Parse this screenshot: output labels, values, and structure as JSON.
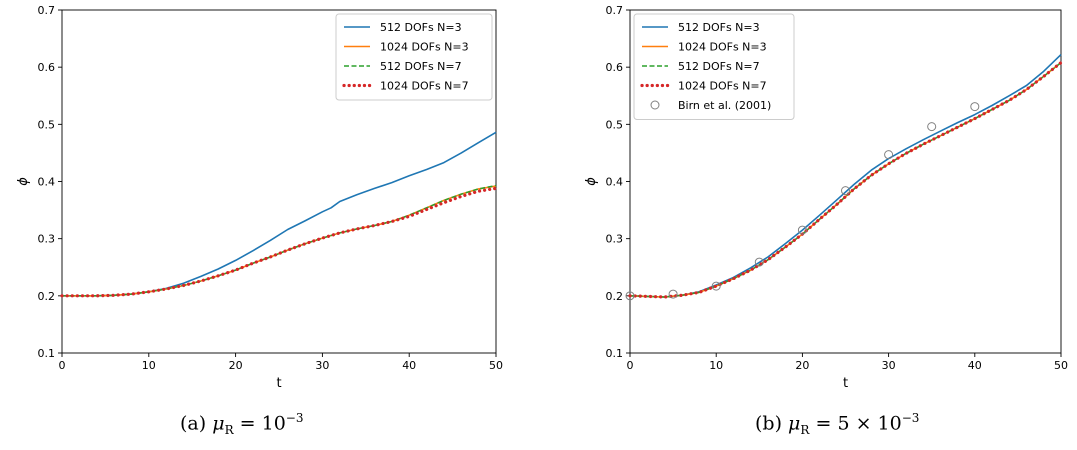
{
  "chart_data": [
    {
      "type": "line",
      "xlabel": "t",
      "ylabel": "ϕ",
      "xlim": [
        0,
        50
      ],
      "ylim": [
        0.1,
        0.7
      ],
      "xticks": [
        "0",
        "10",
        "20",
        "30",
        "40",
        "50"
      ],
      "yticks": [
        "0.1",
        "0.2",
        "0.3",
        "0.4",
        "0.5",
        "0.6",
        "0.7"
      ],
      "grid": false,
      "legend_position": "top-right",
      "caption": {
        "prefix": "(a) ",
        "mu": "μ",
        "sub": "R",
        "eq": " = ",
        "value": "10",
        "sup": "−3"
      },
      "series": [
        {
          "name": "512 DOFs N=3",
          "color": "#1f77b4",
          "style": "solid",
          "x": [
            0,
            2,
            4,
            6,
            8,
            10,
            12,
            14,
            16,
            18,
            20,
            22,
            24,
            26,
            28,
            30,
            31,
            32,
            34,
            36,
            38,
            40,
            42,
            44,
            46,
            48,
            50
          ],
          "y": [
            0.2,
            0.2,
            0.2,
            0.201,
            0.203,
            0.207,
            0.213,
            0.222,
            0.234,
            0.247,
            0.262,
            0.279,
            0.297,
            0.316,
            0.331,
            0.347,
            0.354,
            0.365,
            0.377,
            0.388,
            0.398,
            0.41,
            0.421,
            0.433,
            0.45,
            0.468,
            0.486
          ]
        },
        {
          "name": "1024 DOFs N=3",
          "color": "#ff7f0e",
          "style": "solid",
          "x": [
            0,
            2,
            4,
            6,
            8,
            10,
            12,
            14,
            16,
            18,
            20,
            22,
            24,
            26,
            28,
            30,
            32,
            34,
            36,
            38,
            40,
            42,
            44,
            46,
            48,
            50
          ],
          "y": [
            0.2,
            0.2,
            0.2,
            0.201,
            0.203,
            0.207,
            0.212,
            0.218,
            0.226,
            0.235,
            0.245,
            0.257,
            0.268,
            0.28,
            0.291,
            0.301,
            0.31,
            0.317,
            0.323,
            0.33,
            0.341,
            0.354,
            0.367,
            0.378,
            0.387,
            0.392
          ]
        },
        {
          "name": "512 DOFs N=7",
          "color": "#2ca02c",
          "style": "dashed",
          "x": [
            0,
            2,
            4,
            6,
            8,
            10,
            12,
            14,
            16,
            18,
            20,
            22,
            24,
            26,
            28,
            30,
            32,
            34,
            36,
            38,
            40,
            42,
            44,
            46,
            48,
            50
          ],
          "y": [
            0.2,
            0.2,
            0.2,
            0.201,
            0.203,
            0.207,
            0.212,
            0.218,
            0.226,
            0.235,
            0.245,
            0.257,
            0.268,
            0.28,
            0.291,
            0.301,
            0.31,
            0.317,
            0.323,
            0.33,
            0.341,
            0.354,
            0.367,
            0.378,
            0.387,
            0.393
          ]
        },
        {
          "name": "1024 DOFs N=7",
          "color": "#d62728",
          "style": "dotted",
          "x": [
            0,
            2,
            4,
            6,
            8,
            10,
            12,
            14,
            16,
            18,
            20,
            22,
            24,
            26,
            28,
            30,
            32,
            34,
            36,
            38,
            40,
            42,
            44,
            46,
            48,
            50
          ],
          "y": [
            0.2,
            0.2,
            0.2,
            0.201,
            0.203,
            0.207,
            0.212,
            0.218,
            0.226,
            0.235,
            0.245,
            0.257,
            0.268,
            0.28,
            0.291,
            0.301,
            0.31,
            0.317,
            0.323,
            0.33,
            0.339,
            0.351,
            0.363,
            0.374,
            0.383,
            0.388
          ]
        }
      ]
    },
    {
      "type": "line",
      "xlabel": "t",
      "ylabel": "ϕ",
      "xlim": [
        0,
        50
      ],
      "ylim": [
        0.1,
        0.7
      ],
      "xticks": [
        "0",
        "10",
        "20",
        "30",
        "40",
        "50"
      ],
      "yticks": [
        "0.1",
        "0.2",
        "0.3",
        "0.4",
        "0.5",
        "0.6",
        "0.7"
      ],
      "grid": false,
      "legend_position": "top-left",
      "caption": {
        "prefix": "(b) ",
        "mu": "μ",
        "sub": "R",
        "eq": " = ",
        "value": "5 × 10",
        "sup": "−3"
      },
      "series": [
        {
          "name": "512 DOFs N=3",
          "color": "#1f77b4",
          "style": "solid",
          "x": [
            0,
            2,
            4,
            6,
            8,
            10,
            12,
            14,
            16,
            18,
            20,
            22,
            24,
            26,
            28,
            30,
            32,
            34,
            36,
            38,
            40,
            42,
            44,
            46,
            48,
            50
          ],
          "y": [
            0.2,
            0.199,
            0.198,
            0.201,
            0.207,
            0.219,
            0.232,
            0.249,
            0.268,
            0.291,
            0.315,
            0.341,
            0.368,
            0.395,
            0.42,
            0.44,
            0.457,
            0.473,
            0.488,
            0.503,
            0.517,
            0.533,
            0.55,
            0.568,
            0.593,
            0.622
          ]
        },
        {
          "name": "1024 DOFs N=3",
          "color": "#ff7f0e",
          "style": "solid",
          "x": [
            0,
            2,
            4,
            6,
            8,
            10,
            12,
            14,
            16,
            18,
            20,
            22,
            24,
            26,
            28,
            30,
            32,
            34,
            36,
            38,
            40,
            42,
            44,
            46,
            48,
            50
          ],
          "y": [
            0.2,
            0.199,
            0.198,
            0.201,
            0.206,
            0.217,
            0.23,
            0.245,
            0.263,
            0.285,
            0.308,
            0.334,
            0.36,
            0.387,
            0.411,
            0.431,
            0.449,
            0.465,
            0.48,
            0.495,
            0.51,
            0.526,
            0.542,
            0.561,
            0.584,
            0.608
          ]
        },
        {
          "name": "512 DOFs N=7",
          "color": "#2ca02c",
          "style": "dashed",
          "x": [
            0,
            2,
            4,
            6,
            8,
            10,
            12,
            14,
            16,
            18,
            20,
            22,
            24,
            26,
            28,
            30,
            32,
            34,
            36,
            38,
            40,
            42,
            44,
            46,
            48,
            50
          ],
          "y": [
            0.2,
            0.199,
            0.198,
            0.201,
            0.206,
            0.217,
            0.23,
            0.245,
            0.263,
            0.285,
            0.308,
            0.334,
            0.36,
            0.387,
            0.411,
            0.431,
            0.449,
            0.465,
            0.48,
            0.495,
            0.51,
            0.526,
            0.542,
            0.561,
            0.584,
            0.608
          ]
        },
        {
          "name": "1024 DOFs N=7",
          "color": "#d62728",
          "style": "dotted",
          "x": [
            0,
            2,
            4,
            6,
            8,
            10,
            12,
            14,
            16,
            18,
            20,
            22,
            24,
            26,
            28,
            30,
            32,
            34,
            36,
            38,
            40,
            42,
            44,
            46,
            48,
            50
          ],
          "y": [
            0.2,
            0.199,
            0.198,
            0.201,
            0.206,
            0.217,
            0.23,
            0.245,
            0.263,
            0.285,
            0.308,
            0.334,
            0.36,
            0.387,
            0.411,
            0.431,
            0.449,
            0.465,
            0.48,
            0.495,
            0.51,
            0.526,
            0.542,
            0.561,
            0.584,
            0.608
          ]
        },
        {
          "name": "Birn et al. (2001)",
          "color": "#808080",
          "style": "markers",
          "x": [
            0,
            5,
            10,
            15,
            20,
            25,
            30,
            35,
            40
          ],
          "y": [
            0.2,
            0.203,
            0.217,
            0.259,
            0.315,
            0.384,
            0.447,
            0.496,
            0.531
          ]
        }
      ]
    }
  ]
}
